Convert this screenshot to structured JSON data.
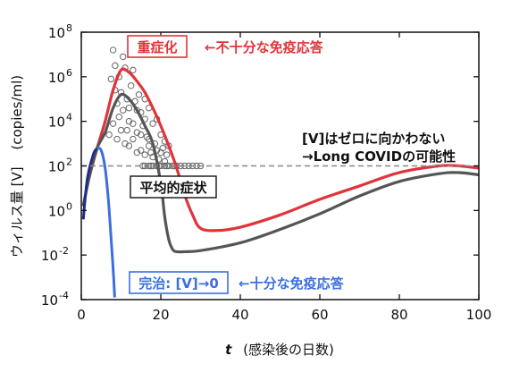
{
  "chart_data": {
    "type": "line",
    "xlabel_var": "t",
    "xlabel_text": "(感染後の日数)",
    "ylabel_text": "ウィルス量 [V]",
    "ylabel_unit": "(copies/ml)",
    "xlim": [
      0,
      100
    ],
    "ylim_log10": [
      -4,
      8
    ],
    "y_scale": "log",
    "x_ticks": [
      0,
      20,
      40,
      60,
      80,
      100
    ],
    "y_ticks": [
      {
        "base": "10",
        "exp": "8"
      },
      {
        "base": "10",
        "exp": "6"
      },
      {
        "base": "10",
        "exp": "4"
      },
      {
        "base": "10",
        "exp": "2"
      },
      {
        "base": "10",
        "exp": "0"
      },
      {
        "base": "10",
        "exp": "-2"
      },
      {
        "base": "10",
        "exp": "-4"
      }
    ],
    "threshold_log10": 2,
    "colors": {
      "severe": "#e0343a",
      "average": "#555555",
      "cured_dark": "#1f2d8a",
      "cured": "#3b6fe0",
      "threshold": "#888888",
      "points": "#666666"
    },
    "series": [
      {
        "key": "severe",
        "x": [
          0.5,
          2,
          4,
          6,
          8,
          10,
          12,
          14,
          16,
          18,
          20,
          22,
          24,
          26,
          28,
          30,
          34,
          40,
          50,
          60,
          70,
          80,
          90,
          95,
          100
        ],
        "log": [
          0.2,
          1.5,
          2.8,
          4.0,
          5.4,
          6.3,
          6.2,
          5.8,
          5.3,
          4.6,
          3.8,
          2.9,
          1.9,
          0.7,
          -0.2,
          -0.8,
          -0.9,
          -0.75,
          -0.2,
          0.5,
          1.1,
          1.7,
          2.0,
          2.0,
          1.9
        ]
      },
      {
        "key": "average",
        "x": [
          0.5,
          2,
          4,
          6,
          8,
          10,
          12,
          14,
          16,
          18,
          20,
          21,
          22,
          23,
          24,
          26,
          30,
          40,
          50,
          60,
          70,
          80,
          90,
          95,
          100
        ],
        "log": [
          0.2,
          1.5,
          2.8,
          3.5,
          4.6,
          5.2,
          5.0,
          4.5,
          3.8,
          3.0,
          1.2,
          -0.3,
          -1.3,
          -1.75,
          -1.85,
          -1.85,
          -1.8,
          -1.45,
          -0.85,
          -0.15,
          0.65,
          1.3,
          1.65,
          1.7,
          1.6
        ]
      },
      {
        "key": "cured",
        "x": [
          0.5,
          1.5,
          3,
          4,
          5,
          6,
          6.8,
          7.4,
          8,
          8.4
        ],
        "log": [
          -0.4,
          1.4,
          2.5,
          2.8,
          2.7,
          1.9,
          0.5,
          -1.0,
          -2.6,
          -3.9
        ]
      }
    ],
    "scatter": [
      {
        "x": 7.5,
        "y": 5.9
      },
      {
        "x": 8,
        "y": 7.2
      },
      {
        "x": 8.5,
        "y": 6.5
      },
      {
        "x": 9,
        "y": 4.8
      },
      {
        "x": 9.5,
        "y": 6.0
      },
      {
        "x": 10,
        "y": 5.3
      },
      {
        "x": 10.5,
        "y": 4.5
      },
      {
        "x": 11,
        "y": 6.4
      },
      {
        "x": 11.5,
        "y": 5.0
      },
      {
        "x": 12,
        "y": 4.0
      },
      {
        "x": 12.5,
        "y": 5.6
      },
      {
        "x": 13,
        "y": 6.3
      },
      {
        "x": 13.5,
        "y": 4.9
      },
      {
        "x": 14,
        "y": 3.5
      },
      {
        "x": 14.5,
        "y": 5.2
      },
      {
        "x": 15,
        "y": 4.4
      },
      {
        "x": 15.5,
        "y": 3.8
      },
      {
        "x": 16,
        "y": 5.0
      },
      {
        "x": 16.5,
        "y": 3.3
      },
      {
        "x": 17,
        "y": 4.6
      },
      {
        "x": 17.5,
        "y": 2.6
      },
      {
        "x": 18,
        "y": 3.9
      },
      {
        "x": 18.5,
        "y": 3.0
      },
      {
        "x": 19,
        "y": 4.1
      },
      {
        "x": 19.5,
        "y": 2.3
      },
      {
        "x": 20,
        "y": 3.4
      },
      {
        "x": 20.5,
        "y": 2.8
      },
      {
        "x": 21,
        "y": 3.1
      },
      {
        "x": 21.5,
        "y": 2.5
      },
      {
        "x": 22,
        "y": 2.9
      },
      {
        "x": 9,
        "y": 3.2
      },
      {
        "x": 10,
        "y": 3.6
      },
      {
        "x": 11,
        "y": 3.0
      },
      {
        "x": 12,
        "y": 2.9
      },
      {
        "x": 13,
        "y": 3.9
      },
      {
        "x": 14,
        "y": 4.5
      },
      {
        "x": 15,
        "y": 2.7
      },
      {
        "x": 16,
        "y": 2.5
      },
      {
        "x": 17,
        "y": 3.2
      },
      {
        "x": 18,
        "y": 2.4
      },
      {
        "x": 12,
        "y": 4.6
      },
      {
        "x": 13,
        "y": 3.2
      },
      {
        "x": 14,
        "y": 2.6
      },
      {
        "x": 15,
        "y": 3.4
      },
      {
        "x": 16,
        "y": 4.1
      },
      {
        "x": 17,
        "y": 2.9
      },
      {
        "x": 19,
        "y": 2.7
      },
      {
        "x": 20,
        "y": 2.6
      },
      {
        "x": 21,
        "y": 2.2
      },
      {
        "x": 10.5,
        "y": 6.9
      },
      {
        "x": 7,
        "y": 3.4
      },
      {
        "x": 8,
        "y": 3.9
      },
      {
        "x": 8.5,
        "y": 5.4
      },
      {
        "x": 9.5,
        "y": 4.2
      },
      {
        "x": 11.5,
        "y": 3.6
      },
      {
        "x": 16,
        "y": 2.0
      },
      {
        "x": 17,
        "y": 2.0
      },
      {
        "x": 18,
        "y": 2.0
      },
      {
        "x": 19,
        "y": 2.0
      },
      {
        "x": 20,
        "y": 2.0
      },
      {
        "x": 21,
        "y": 2.0
      },
      {
        "x": 22,
        "y": 2.0
      },
      {
        "x": 23,
        "y": 2.0
      },
      {
        "x": 24,
        "y": 2.0
      },
      {
        "x": 25,
        "y": 2.0
      },
      {
        "x": 26,
        "y": 2.0
      },
      {
        "x": 27,
        "y": 2.0
      },
      {
        "x": 28,
        "y": 2.0
      },
      {
        "x": 29,
        "y": 2.0
      },
      {
        "x": 30,
        "y": 2.0
      },
      {
        "x": 15.5,
        "y": 2.0
      },
      {
        "x": 17.5,
        "y": 2.0
      },
      {
        "x": 19.5,
        "y": 2.0
      },
      {
        "x": 21.5,
        "y": 2.0
      },
      {
        "x": 23.5,
        "y": 2.0
      }
    ],
    "annotations": {
      "severe_label": "重症化",
      "severe_note": "←不十分な免疫応答",
      "average_label": "平均的症状",
      "cured_label": "完治: [V]→0",
      "cured_note": "←十分な免疫応答",
      "persist_line1": "[V]はゼロに向かわない",
      "persist_line2": "→Long COVIDの可能性"
    }
  }
}
